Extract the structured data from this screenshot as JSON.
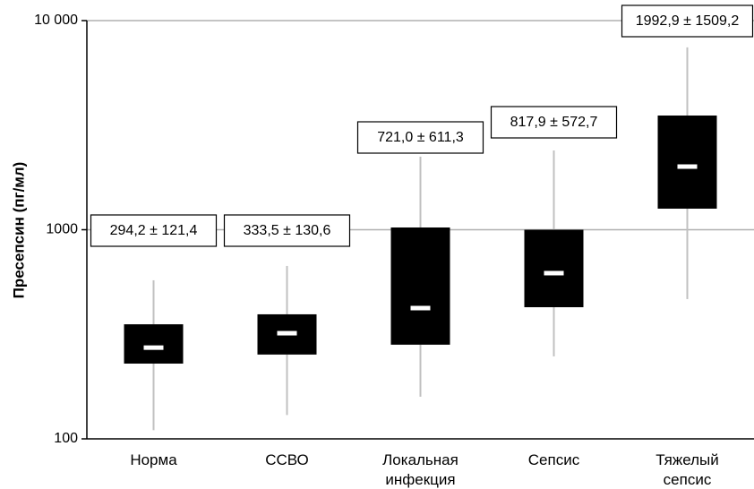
{
  "chart_data": {
    "type": "box",
    "y_label": "Пресепсин (пг/мл)",
    "categories": [
      "Норма",
      "ССВО",
      "Локальная инфекция",
      "Сепсис",
      "Тяжелый сепсис"
    ],
    "whisker_high": [
      573,
      671,
      2236,
      2393,
      7447
    ],
    "q3": [
      353,
      394,
      1025,
      1000,
      3516
    ],
    "median": [
      273,
      320,
      422,
      620,
      2004
    ],
    "q1": [
      229,
      253,
      282,
      426,
      1261
    ],
    "whisker_low": [
      110,
      130,
      159,
      248,
      466
    ],
    "annotations": [
      "294,2 ± 121,4",
      "333,5 ± 130,6",
      "721,0 ± 611,3",
      "817,9 ± 572,7",
      "1992,9 ± 1509,2"
    ],
    "box_color": "#000000",
    "median_color": "#ffffff",
    "whisker_color": "#c0c0c0",
    "log_scale": true,
    "grid": true,
    "ylim": [
      100,
      10000
    ],
    "yticks": [
      100,
      1000,
      {
        "value": 10000,
        "label": "10 000"
      }
    ]
  }
}
